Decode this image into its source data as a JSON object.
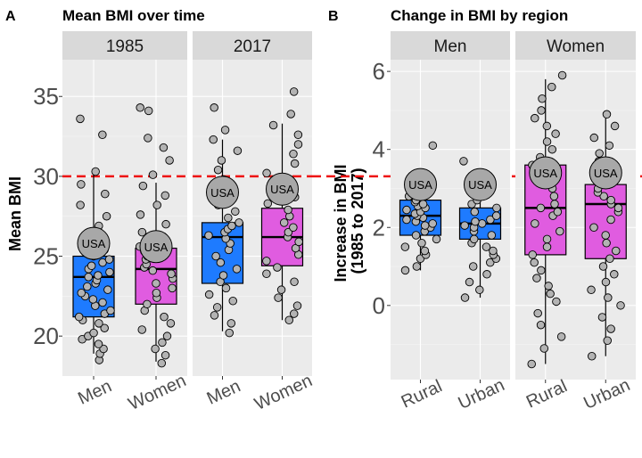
{
  "chart_data": [
    {
      "type": "box",
      "panel_tag": "A",
      "title": "Mean BMI over time",
      "ylabel": "Mean BMI",
      "ylim": [
        17.5,
        37.3
      ],
      "yticks": [
        20,
        25,
        30,
        35
      ],
      "reference_line": {
        "y": 30,
        "color": "#ee1111",
        "style": "dashed"
      },
      "facets": [
        {
          "label": "1985",
          "categories": [
            "Men",
            "Women"
          ],
          "boxes": [
            {
              "q1": 21.2,
              "median": 23.7,
              "q3": 25.0,
              "lower_whisker": 18.9,
              "upper_whisker": 30.2,
              "fill": "#1e7bff",
              "points": [
                18.5,
                18.9,
                19.2,
                19.5,
                19.8,
                20.0,
                20.2,
                20.5,
                20.8,
                21.0,
                21.2,
                21.4,
                21.6,
                21.9,
                22.1,
                22.3,
                22.5,
                22.7,
                22.9,
                23.1,
                23.3,
                23.5,
                23.7,
                23.8,
                24.0,
                24.2,
                24.4,
                24.6,
                24.8,
                25.0,
                25.4,
                25.8,
                26.3,
                26.9,
                27.5,
                28.2,
                28.9,
                29.5,
                30.3,
                32.6,
                33.6
              ],
              "usa": 25.8
            },
            {
              "q1": 22.0,
              "median": 24.2,
              "q3": 25.5,
              "lower_whisker": 18.4,
              "upper_whisker": 29.6,
              "fill": "#e05ce0",
              "points": [
                18.3,
                18.8,
                19.2,
                19.6,
                20.0,
                20.4,
                20.8,
                21.2,
                21.6,
                22.0,
                22.4,
                22.7,
                23.0,
                23.3,
                23.6,
                23.9,
                24.1,
                24.3,
                24.5,
                24.8,
                25.0,
                25.3,
                25.6,
                26.0,
                26.5,
                27.0,
                27.6,
                28.2,
                28.8,
                29.4,
                30.1,
                31.0,
                31.8,
                32.4,
                34.1,
                34.3
              ],
              "usa": 25.6
            }
          ]
        },
        {
          "label": "2017",
          "categories": [
            "Men",
            "Women"
          ],
          "boxes": [
            {
              "q1": 23.3,
              "median": 26.2,
              "q3": 27.1,
              "lower_whisker": 20.3,
              "upper_whisker": 32.3,
              "fill": "#1e7bff",
              "points": [
                20.2,
                20.8,
                21.3,
                21.8,
                22.2,
                22.6,
                23.0,
                23.4,
                23.8,
                24.2,
                24.6,
                25.0,
                25.4,
                25.8,
                26.1,
                26.3,
                26.5,
                26.7,
                26.9,
                27.1,
                27.4,
                27.8,
                28.2,
                28.7,
                29.2,
                29.8,
                30.4,
                31.0,
                31.6,
                32.3,
                32.9,
                34.3
              ],
              "usa": 29.0
            },
            {
              "q1": 24.4,
              "median": 26.2,
              "q3": 28.0,
              "lower_whisker": 21.0,
              "upper_whisker": 33.3,
              "fill": "#e05ce0",
              "points": [
                21.0,
                21.4,
                21.9,
                22.4,
                22.9,
                23.4,
                23.9,
                24.3,
                24.7,
                25.1,
                25.5,
                25.9,
                26.2,
                26.5,
                26.8,
                27.1,
                27.5,
                27.9,
                28.3,
                28.7,
                29.2,
                29.7,
                30.2,
                30.8,
                31.4,
                32.0,
                32.6,
                33.2,
                33.9,
                35.3
              ],
              "usa": 29.2
            }
          ]
        }
      ]
    },
    {
      "type": "box",
      "panel_tag": "B",
      "title": "Change in BMI by region",
      "ylabel": "Increase in BMI\n(1985 to 2017)",
      "ylim": [
        -1.9,
        6.3
      ],
      "yticks": [
        0,
        2,
        4,
        6
      ],
      "facets": [
        {
          "label": "Men",
          "categories": [
            "Rural",
            "Urban"
          ],
          "boxes": [
            {
              "q1": 1.8,
              "median": 2.3,
              "q3": 2.7,
              "lower_whisker": 0.9,
              "upper_whisker": 3.3,
              "fill": "#1e7bff",
              "points": [
                0.9,
                1.0,
                1.2,
                1.3,
                1.4,
                1.5,
                1.6,
                1.7,
                1.8,
                1.9,
                2.0,
                2.05,
                2.1,
                2.15,
                2.2,
                2.25,
                2.3,
                2.35,
                2.4,
                2.45,
                2.5,
                2.55,
                2.6,
                2.65,
                2.7,
                2.8,
                2.9,
                3.0,
                3.1,
                3.2,
                3.3,
                4.1
              ],
              "usa": 3.1
            },
            {
              "q1": 1.7,
              "median": 2.1,
              "q3": 2.5,
              "lower_whisker": 0.2,
              "upper_whisker": 3.5,
              "fill": "#1e7bff",
              "points": [
                0.2,
                0.4,
                0.6,
                0.8,
                1.0,
                1.1,
                1.2,
                1.3,
                1.4,
                1.5,
                1.6,
                1.7,
                1.8,
                1.9,
                2.0,
                2.05,
                2.1,
                2.15,
                2.2,
                2.3,
                2.4,
                2.5,
                2.6,
                2.7,
                2.8,
                2.9,
                3.0,
                3.1,
                3.2,
                3.4,
                3.7
              ],
              "usa": 3.1
            }
          ]
        },
        {
          "label": "Women",
          "categories": [
            "Rural",
            "Urban"
          ],
          "boxes": [
            {
              "q1": 1.3,
              "median": 2.5,
              "q3": 3.6,
              "lower_whisker": -1.5,
              "upper_whisker": 5.8,
              "fill": "#e05ce0",
              "points": [
                -1.5,
                -1.1,
                -0.8,
                -0.5,
                -0.2,
                0.1,
                0.3,
                0.5,
                0.7,
                0.9,
                1.1,
                1.3,
                1.5,
                1.7,
                1.9,
                2.1,
                2.3,
                2.4,
                2.5,
                2.6,
                2.8,
                3.0,
                3.2,
                3.4,
                3.6,
                3.8,
                4.0,
                4.2,
                4.4,
                4.6,
                4.8,
                5.0,
                5.3,
                5.6,
                5.9
              ],
              "usa": 3.4
            },
            {
              "q1": 1.2,
              "median": 2.6,
              "q3": 3.1,
              "lower_whisker": -1.3,
              "upper_whisker": 4.8,
              "fill": "#e05ce0",
              "points": [
                -1.3,
                -0.9,
                -0.6,
                -0.3,
                0.0,
                0.2,
                0.4,
                0.6,
                0.8,
                1.0,
                1.2,
                1.4,
                1.6,
                1.8,
                2.0,
                2.2,
                2.4,
                2.5,
                2.6,
                2.7,
                2.8,
                2.9,
                3.0,
                3.1,
                3.3,
                3.5,
                3.7,
                3.9,
                4.1,
                4.3,
                4.6,
                4.9
              ],
              "usa": 3.4
            }
          ]
        }
      ]
    }
  ],
  "usa_label": "USA"
}
